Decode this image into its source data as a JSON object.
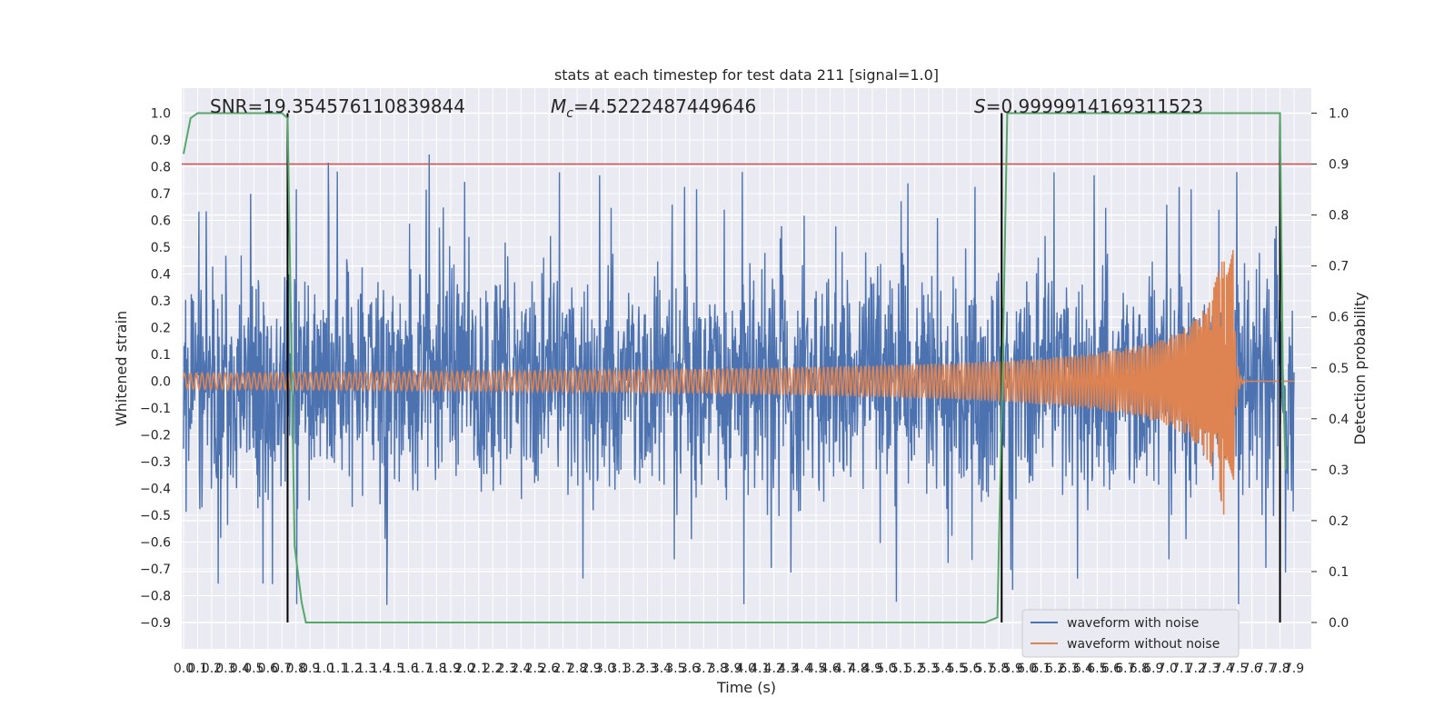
{
  "chart_data": {
    "type": "line",
    "title": "stats at each timestep for test data 211 [signal=1.0]",
    "xlabel": "Time (s)",
    "ylabel": "Whitened strain",
    "y2label": "Detection probability",
    "xlim": [
      0.0,
      7.9
    ],
    "ylim": [
      -0.99,
      1.09
    ],
    "y2lim": [
      -0.05,
      1.05
    ],
    "x_ticks": [
      "0.0",
      "0.1",
      "0.2",
      "0.3",
      "0.4",
      "0.5",
      "0.6",
      "0.7",
      "0.8",
      "0.9",
      "1.0",
      "1.1",
      "1.2",
      "1.3",
      "1.4",
      "1.5",
      "1.6",
      "1.7",
      "1.8",
      "1.9",
      "2.0",
      "2.1",
      "2.2",
      "2.3",
      "2.4",
      "2.5",
      "2.6",
      "2.7",
      "2.8",
      "2.9",
      "3.0",
      "3.1",
      "3.2",
      "3.3",
      "3.4",
      "3.5",
      "3.6",
      "3.7",
      "3.8",
      "3.9",
      "4.0",
      "4.1",
      "4.2",
      "4.3",
      "4.4",
      "4.5",
      "4.6",
      "4.7",
      "4.8",
      "4.9",
      "5.0",
      "5.1",
      "5.2",
      "5.3",
      "5.4",
      "5.5",
      "5.6",
      "5.7",
      "5.8",
      "5.9",
      "6.0",
      "6.1",
      "6.2",
      "6.3",
      "6.4",
      "6.5",
      "6.6",
      "6.7",
      "6.8",
      "6.9",
      "7.0",
      "7.1",
      "7.2",
      "7.3",
      "7.4",
      "7.5",
      "7.6",
      "7.7",
      "7.8",
      "7.9"
    ],
    "y_ticks": [
      "1.0",
      "0.9",
      "0.8",
      "0.7",
      "0.6",
      "0.5",
      "0.4",
      "0.3",
      "0.2",
      "0.1",
      "0.0",
      "−0.1",
      "−0.2",
      "−0.3",
      "−0.4",
      "−0.5",
      "−0.6",
      "−0.7",
      "−0.8",
      "−0.9"
    ],
    "y_tick_values": [
      1.0,
      0.9,
      0.8,
      0.7,
      0.6,
      0.5,
      0.4,
      0.3,
      0.2,
      0.1,
      0.0,
      -0.1,
      -0.2,
      -0.3,
      -0.4,
      -0.5,
      -0.6,
      -0.7,
      -0.8,
      -0.9
    ],
    "y2_ticks": [
      "1.0",
      "0.9",
      "0.8",
      "0.7",
      "0.6",
      "0.5",
      "0.4",
      "0.3",
      "0.2",
      "0.1",
      "0.0"
    ],
    "y2_tick_values": [
      1.0,
      0.9,
      0.8,
      0.7,
      0.6,
      0.5,
      0.4,
      0.3,
      0.2,
      0.1,
      0.0
    ],
    "annotations": {
      "snr": "SNR=19.354576110839844",
      "mc_symbol": "M",
      "mc_sub": "c",
      "mc_value": "=4.5222487449646",
      "s_symbol": "S",
      "s_value": "=0.9999914169311523"
    },
    "legend": {
      "placement": "lower-right",
      "entries": [
        "waveform with noise",
        "waveform without noise"
      ]
    },
    "threshold": {
      "y2": 0.9,
      "color": "#c44e52"
    },
    "vlines_x": [
      0.74,
      5.82,
      7.8
    ],
    "detection_probability": {
      "name": "",
      "color": "#55a868",
      "x": [
        0.0,
        0.05,
        0.1,
        0.7,
        0.74,
        0.79,
        0.84,
        0.87,
        5.7,
        5.79,
        5.83,
        5.86,
        7.8,
        7.82,
        7.84
      ],
      "y": [
        0.92,
        0.99,
        1.0,
        1.0,
        0.99,
        0.15,
        0.04,
        0.0,
        0.0,
        0.01,
        0.55,
        1.0,
        1.0,
        0.5,
        0.3
      ]
    },
    "series": [
      {
        "name": "waveform with noise",
        "color": "#4c72b0",
        "noise_band": 0.4,
        "max": 1.0,
        "min": -0.9
      },
      {
        "name": "waveform without noise",
        "color": "#dd8452",
        "amp_start": 0.03,
        "merger_x": 7.47,
        "merger_amp": 0.5,
        "merger_min": -0.37
      }
    ]
  }
}
